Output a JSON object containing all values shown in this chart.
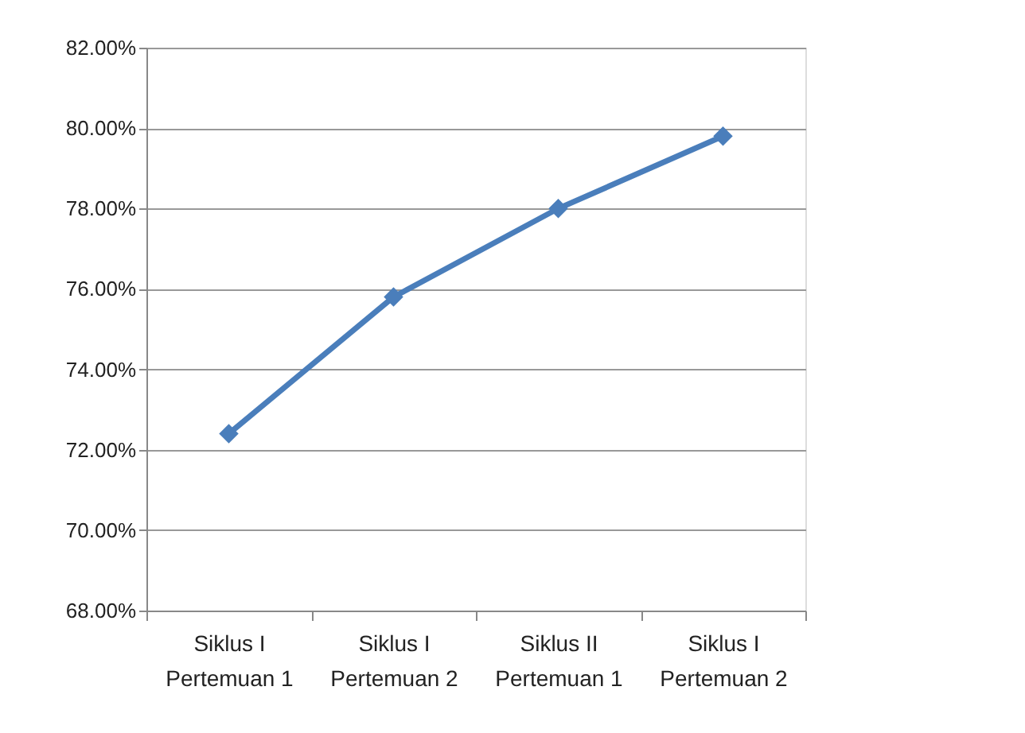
{
  "chart_data": {
    "type": "line",
    "categories": [
      "Siklus I\nPertemuan 1",
      "Siklus I\nPertemuan 2",
      "Siklus II\nPertemuan 1",
      "Siklus I\nPertemuan 2"
    ],
    "series": [
      {
        "color": "#4a7ebb",
        "values": [
          72.4,
          75.8,
          78.0,
          79.8
        ]
      }
    ],
    "ylim": [
      68,
      82
    ],
    "yticks": [
      {
        "value": 68,
        "label": "68.00%"
      },
      {
        "value": 70,
        "label": "70.00%"
      },
      {
        "value": 72,
        "label": "72.00%"
      },
      {
        "value": 74,
        "label": "74.00%"
      },
      {
        "value": 76,
        "label": "76.00%"
      },
      {
        "value": 78,
        "label": "78.00%"
      },
      {
        "value": 80,
        "label": "80.00%"
      },
      {
        "value": 82,
        "label": "82.00%"
      }
    ],
    "grid": "y",
    "marker": "diamond",
    "line_style": "solid"
  }
}
